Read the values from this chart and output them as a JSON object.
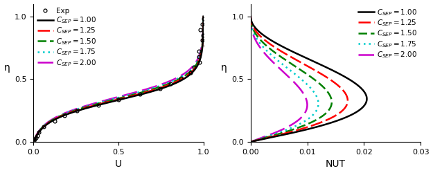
{
  "left_xlabel": "U",
  "left_ylabel": "η",
  "right_xlabel": "NUT",
  "right_ylabel": "η",
  "left_xlim": [
    0.0,
    1.0
  ],
  "left_ylim": [
    0.0,
    1.1
  ],
  "right_xlim": [
    0.0,
    0.03
  ],
  "right_ylim": [
    0.0,
    1.1
  ],
  "left_xticks": [
    0.0,
    0.5,
    1.0
  ],
  "left_yticks": [
    0.0,
    0.5,
    1.0
  ],
  "right_xticks": [
    0.0,
    0.01,
    0.02,
    0.03
  ],
  "right_yticks": [
    0.0,
    0.5,
    1.0
  ],
  "c_values": [
    1.0,
    1.25,
    1.5,
    1.75,
    2.0
  ],
  "series": [
    {
      "label": "$C_{SEP} = 1.00$",
      "color": "#000000",
      "linestyle": "solid",
      "linewidth": 1.8,
      "dash": null
    },
    {
      "label": "$C_{SEP} = 1.25$",
      "color": "#ff0000",
      "linestyle": "dashed",
      "linewidth": 1.8,
      "dash": [
        7,
        2
      ]
    },
    {
      "label": "$C_{SEP} = 1.50$",
      "color": "#008000",
      "linestyle": "dashed",
      "linewidth": 1.8,
      "dash": [
        5,
        2
      ]
    },
    {
      "label": "$C_{SEP} = 1.75$",
      "color": "#00cccc",
      "linestyle": "dotted",
      "linewidth": 1.8,
      "dash": [
        1,
        2
      ]
    },
    {
      "label": "$C_{SEP} = 2.00$",
      "color": "#cc00cc",
      "linestyle": "dashed",
      "linewidth": 1.8,
      "dash": [
        9,
        3
      ]
    }
  ],
  "exp_label": "Exp",
  "exp_color": "#000000",
  "background_color": "#ffffff",
  "tick_fontsize": 8,
  "label_fontsize": 10,
  "legend_fontsize": 7.5,
  "vel_knee": 0.3,
  "vel_knee_u": 0.28,
  "nut_peak_c1": 0.0205,
  "nut_peak_decay": 0.72,
  "nut_alpha": 1.15,
  "nut_beta_base": 2.2,
  "nut_beta_slope": 0.55
}
